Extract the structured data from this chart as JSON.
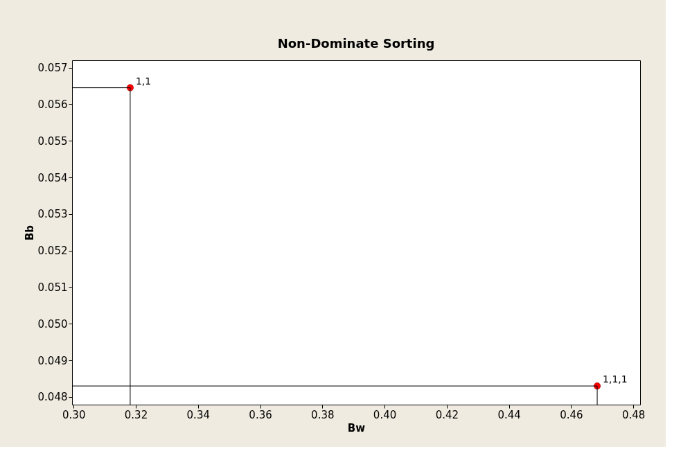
{
  "chart_data": {
    "type": "scatter",
    "title": "Non-Dominate Sorting",
    "xlabel": "Bw",
    "ylabel": "Bb",
    "xlim": [
      0.2995,
      0.4822
    ],
    "ylim": [
      0.04779,
      0.0572
    ],
    "xticks": [
      {
        "value": 0.3,
        "label": "0.30"
      },
      0.32,
      0.34,
      0.36,
      0.38,
      {
        "value": 0.4,
        "label": "0.40"
      },
      0.42,
      0.44,
      0.46,
      0.48
    ],
    "yticks": [
      0.048,
      0.049,
      {
        "value": 0.05,
        "label": "0.050"
      },
      0.051,
      0.052,
      0.053,
      0.054,
      0.055,
      0.056,
      0.057
    ],
    "grid": false,
    "legend": false,
    "marker": "circle",
    "series": [
      {
        "color": "#ff0000",
        "x": [
          0.3182,
          0.4684
        ],
        "values": [
          0.05645,
          0.0483
        ]
      },
      {
        "type": "line",
        "color": "#000000",
        "line_style": "solid",
        "marker": "none",
        "x": [
          0.2995,
          0.3182,
          0.3182
        ],
        "values": [
          0.05645,
          0.05645,
          0.04779
        ]
      },
      {
        "type": "line",
        "color": "#000000",
        "line_style": "solid",
        "marker": "none",
        "x": [
          0.2995,
          0.4684,
          0.4684
        ],
        "values": [
          0.0483,
          0.0483,
          0.04779
        ]
      }
    ],
    "annotations": [
      {
        "text": "1,1",
        "x": 0.3182,
        "y": 0.05645
      },
      {
        "text": "1,1,1",
        "x": 0.4684,
        "y": 0.0483
      }
    ]
  }
}
